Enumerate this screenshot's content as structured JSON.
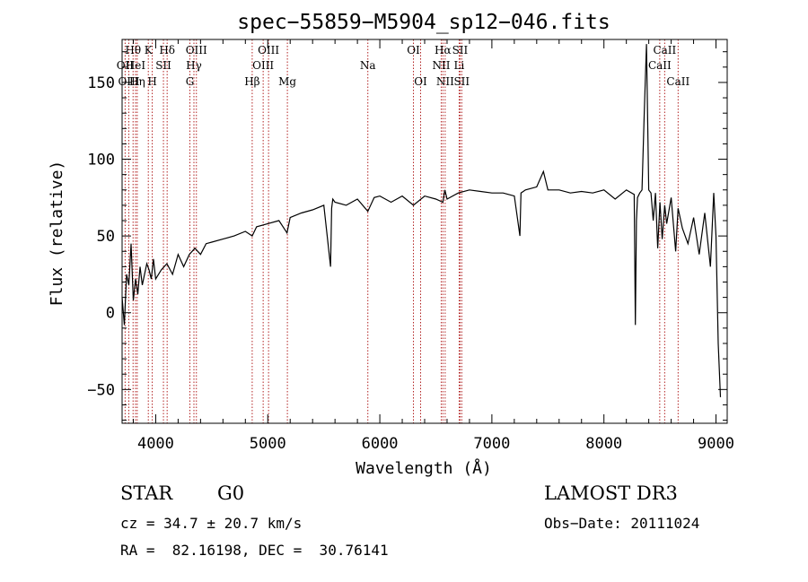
{
  "chart_data": {
    "type": "line",
    "title": "spec−55859−M5904_sp12−046.fits",
    "xlabel": "Wavelength (Å)",
    "ylabel": "Flux (relative)",
    "xlim": [
      3700,
      9100
    ],
    "ylim": [
      -72,
      178
    ],
    "x_ticks": [
      4000,
      5000,
      6000,
      7000,
      8000,
      9000
    ],
    "y_ticks": [
      -50,
      0,
      50,
      100,
      150
    ],
    "y_tick_labels": [
      "−50",
      "0",
      "50",
      "100",
      "150"
    ],
    "grid": false,
    "series": [
      {
        "name": "flux",
        "x": [
          3700,
          3720,
          3740,
          3760,
          3780,
          3800,
          3820,
          3840,
          3860,
          3880,
          3900,
          3920,
          3940,
          3960,
          3980,
          4000,
          4050,
          4100,
          4150,
          4200,
          4250,
          4300,
          4350,
          4400,
          4450,
          4500,
          4600,
          4700,
          4800,
          4861,
          4900,
          5000,
          5100,
          5172,
          5200,
          5300,
          5400,
          5500,
          5560,
          5570,
          5580,
          5600,
          5700,
          5800,
          5893,
          5950,
          6000,
          6100,
          6200,
          6300,
          6400,
          6500,
          6563,
          6580,
          6600,
          6700,
          6800,
          6900,
          7000,
          7100,
          7200,
          7250,
          7260,
          7300,
          7400,
          7460,
          7500,
          7600,
          7700,
          7800,
          7900,
          8000,
          8100,
          8200,
          8270,
          8280,
          8290,
          8300,
          8320,
          8340,
          8360,
          8380,
          8400,
          8420,
          8440,
          8460,
          8480,
          8500,
          8520,
          8542,
          8560,
          8600,
          8640,
          8662,
          8700,
          8750,
          8800,
          8850,
          8900,
          8950,
          8980,
          9000,
          9020,
          9040
        ],
        "y": [
          10,
          -8,
          25,
          18,
          45,
          8,
          22,
          12,
          30,
          18,
          25,
          32,
          28,
          22,
          35,
          22,
          28,
          32,
          25,
          38,
          30,
          38,
          42,
          38,
          45,
          46,
          48,
          50,
          53,
          50,
          56,
          58,
          60,
          52,
          62,
          65,
          67,
          70,
          30,
          68,
          74,
          72,
          70,
          74,
          66,
          75,
          76,
          72,
          76,
          70,
          76,
          74,
          72,
          80,
          74,
          78,
          80,
          79,
          78,
          78,
          76,
          50,
          78,
          80,
          82,
          92,
          80,
          80,
          78,
          79,
          78,
          80,
          74,
          80,
          77,
          -8,
          60,
          75,
          78,
          80,
          130,
          175,
          80,
          78,
          60,
          78,
          42,
          72,
          48,
          70,
          58,
          75,
          40,
          68,
          55,
          45,
          62,
          38,
          65,
          30,
          78,
          50,
          -20,
          -55
        ]
      }
    ],
    "lines": [
      {
        "label": "Hθ",
        "wl": 3798,
        "row": 0
      },
      {
        "label": "OII",
        "wl": 3727,
        "row": 1
      },
      {
        "label": "HeI",
        "wl": 3820,
        "row": 1
      },
      {
        "label": "Hη",
        "wl": 3835,
        "row": 2
      },
      {
        "label": "OIII",
        "wl": 3760,
        "row": 2
      },
      {
        "label": "K",
        "wl": 3934,
        "row": 0
      },
      {
        "label": "SII",
        "wl": 4069,
        "row": 1
      },
      {
        "label": "H",
        "wl": 3969,
        "row": 2
      },
      {
        "label": "Hδ",
        "wl": 4102,
        "row": 0
      },
      {
        "label": "OIII",
        "wl": 4363,
        "row": 0
      },
      {
        "label": "Hγ",
        "wl": 4341,
        "row": 1
      },
      {
        "label": "G",
        "wl": 4305,
        "row": 2
      },
      {
        "label": "Hβ",
        "wl": 4861,
        "row": 2
      },
      {
        "label": "OIII",
        "wl": 5007,
        "row": 0
      },
      {
        "label": "OIII",
        "wl": 4959,
        "row": 1
      },
      {
        "label": "Mg",
        "wl": 5175,
        "row": 2
      },
      {
        "label": "Na",
        "wl": 5893,
        "row": 1
      },
      {
        "label": "OI",
        "wl": 6300,
        "row": 0
      },
      {
        "label": "OI",
        "wl": 6364,
        "row": 2
      },
      {
        "label": "Hα",
        "wl": 6563,
        "row": 0
      },
      {
        "label": "NII",
        "wl": 6548,
        "row": 1
      },
      {
        "label": "NII",
        "wl": 6583,
        "row": 2
      },
      {
        "label": "SII",
        "wl": 6716,
        "row": 0
      },
      {
        "label": "Li",
        "wl": 6708,
        "row": 1
      },
      {
        "label": "SII",
        "wl": 6731,
        "row": 2
      },
      {
        "label": "CaII",
        "wl": 8542,
        "row": 0
      },
      {
        "label": "CaII",
        "wl": 8498,
        "row": 1
      },
      {
        "label": "CaII",
        "wl": 8662,
        "row": 2
      }
    ]
  },
  "info": {
    "class_label": "STAR",
    "subclass_label": "G0",
    "survey": "LAMOST DR3",
    "cz": "cz = 34.7 ± 20.7 km/s",
    "obs_date": "Obs−Date: 20111024",
    "radec": "RA =  82.16198, DEC =  30.76141"
  },
  "colors": {
    "line_marker": "#b22222",
    "spectrum": "#000000",
    "axis": "#000000"
  }
}
